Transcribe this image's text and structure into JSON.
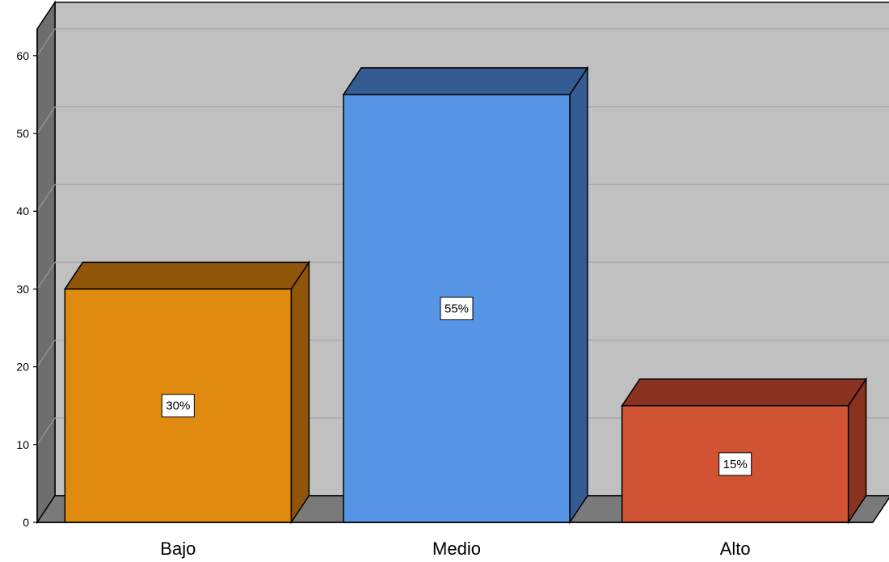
{
  "chart_data": {
    "type": "bar",
    "title": "",
    "xlabel": "",
    "ylabel": "",
    "categories": [
      "Bajo",
      "Medio",
      "Alto"
    ],
    "values": [
      30,
      55,
      15
    ],
    "data_labels": [
      "30%",
      "55%",
      "15%"
    ],
    "colors": {
      "front": [
        "#E08A10",
        "#5795E6",
        "#D05433"
      ],
      "top": [
        "#8F5508",
        "#345C92",
        "#88321F"
      ],
      "side": [
        "#8F5508",
        "#345C92",
        "#88321F"
      ]
    },
    "ylim": [
      0,
      60
    ],
    "yticks": [
      "0",
      "10",
      "20",
      "30",
      "40",
      "50",
      "60"
    ],
    "grid": true,
    "style": "3d",
    "legend": "none"
  }
}
